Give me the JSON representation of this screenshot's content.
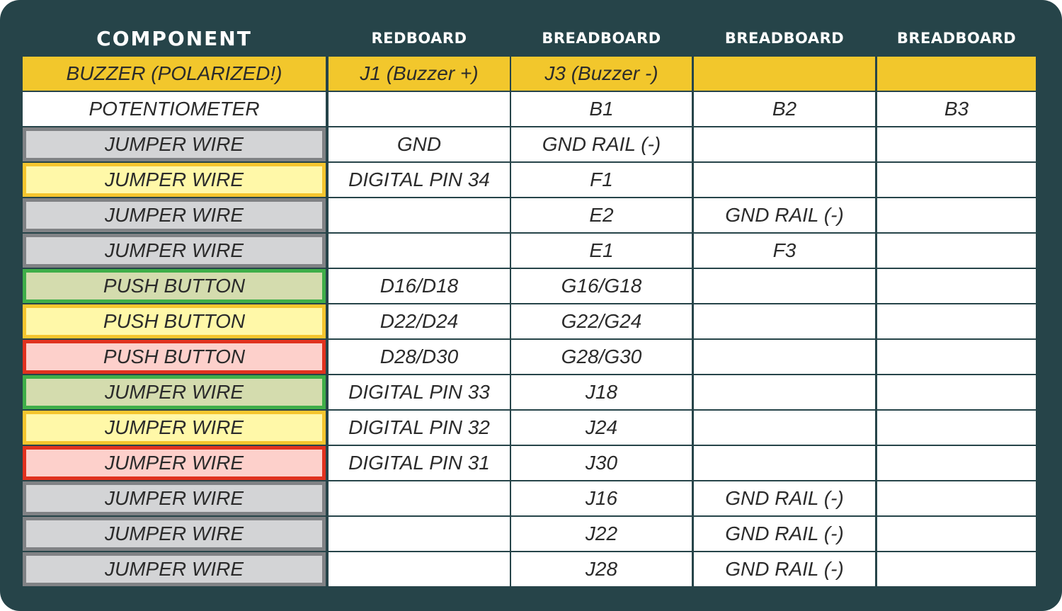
{
  "headers": [
    "COMPONENT",
    "REDBOARD",
    "BREADBOARD",
    "BREADBOARD",
    "BREADBOARD"
  ],
  "colors": {
    "background": "#264449",
    "buzzer": {
      "fill": "#f2c72c",
      "border": "#f2c72c"
    },
    "white": {
      "fill": "#ffffff",
      "border": "#ffffff"
    },
    "gray": {
      "fill": "#d3d4d6",
      "border": "#808285"
    },
    "yellow": {
      "fill": "#fff8a8",
      "border": "#f5c52e"
    },
    "green": {
      "fill": "#d4dcae",
      "border": "#3fae49"
    },
    "red": {
      "fill": "#fdd0cb",
      "border": "#e0321f"
    }
  },
  "rows": [
    {
      "style": "buzzer",
      "cells": [
        "BUZZER (POLARIZED!)",
        "J1 (Buzzer +)",
        "J3 (Buzzer -)",
        "",
        ""
      ]
    },
    {
      "style": "white",
      "cells": [
        "POTENTIOMETER",
        "",
        "B1",
        "B2",
        "B3"
      ]
    },
    {
      "style": "gray",
      "cells": [
        "JUMPER WIRE",
        "GND",
        "GND RAIL (-)",
        "",
        ""
      ]
    },
    {
      "style": "yellow",
      "cells": [
        "JUMPER WIRE",
        "DIGITAL PIN 34",
        "F1",
        "",
        ""
      ]
    },
    {
      "style": "gray",
      "cells": [
        "JUMPER WIRE",
        "",
        "E2",
        "GND RAIL (-)",
        ""
      ]
    },
    {
      "style": "gray",
      "cells": [
        "JUMPER WIRE",
        "",
        "E1",
        "F3",
        ""
      ]
    },
    {
      "style": "green",
      "cells": [
        "PUSH BUTTON",
        "D16/D18",
        "G16/G18",
        "",
        ""
      ]
    },
    {
      "style": "yellow",
      "cells": [
        "PUSH BUTTON",
        "D22/D24",
        "G22/G24",
        "",
        ""
      ]
    },
    {
      "style": "red",
      "cells": [
        "PUSH BUTTON",
        "D28/D30",
        "G28/G30",
        "",
        ""
      ]
    },
    {
      "style": "green",
      "cells": [
        "JUMPER WIRE",
        "DIGITAL PIN 33",
        "J18",
        "",
        ""
      ]
    },
    {
      "style": "yellow",
      "cells": [
        "JUMPER WIRE",
        "DIGITAL PIN 32",
        "J24",
        "",
        ""
      ]
    },
    {
      "style": "red",
      "cells": [
        "JUMPER WIRE",
        "DIGITAL PIN 31",
        "J30",
        "",
        ""
      ]
    },
    {
      "style": "gray",
      "cells": [
        "JUMPER WIRE",
        "",
        "J16",
        "GND RAIL (-)",
        ""
      ]
    },
    {
      "style": "gray",
      "cells": [
        "JUMPER WIRE",
        "",
        "J22",
        "GND RAIL (-)",
        ""
      ]
    },
    {
      "style": "gray",
      "cells": [
        "JUMPER WIRE",
        "",
        "J28",
        "GND RAIL (-)",
        ""
      ]
    }
  ]
}
